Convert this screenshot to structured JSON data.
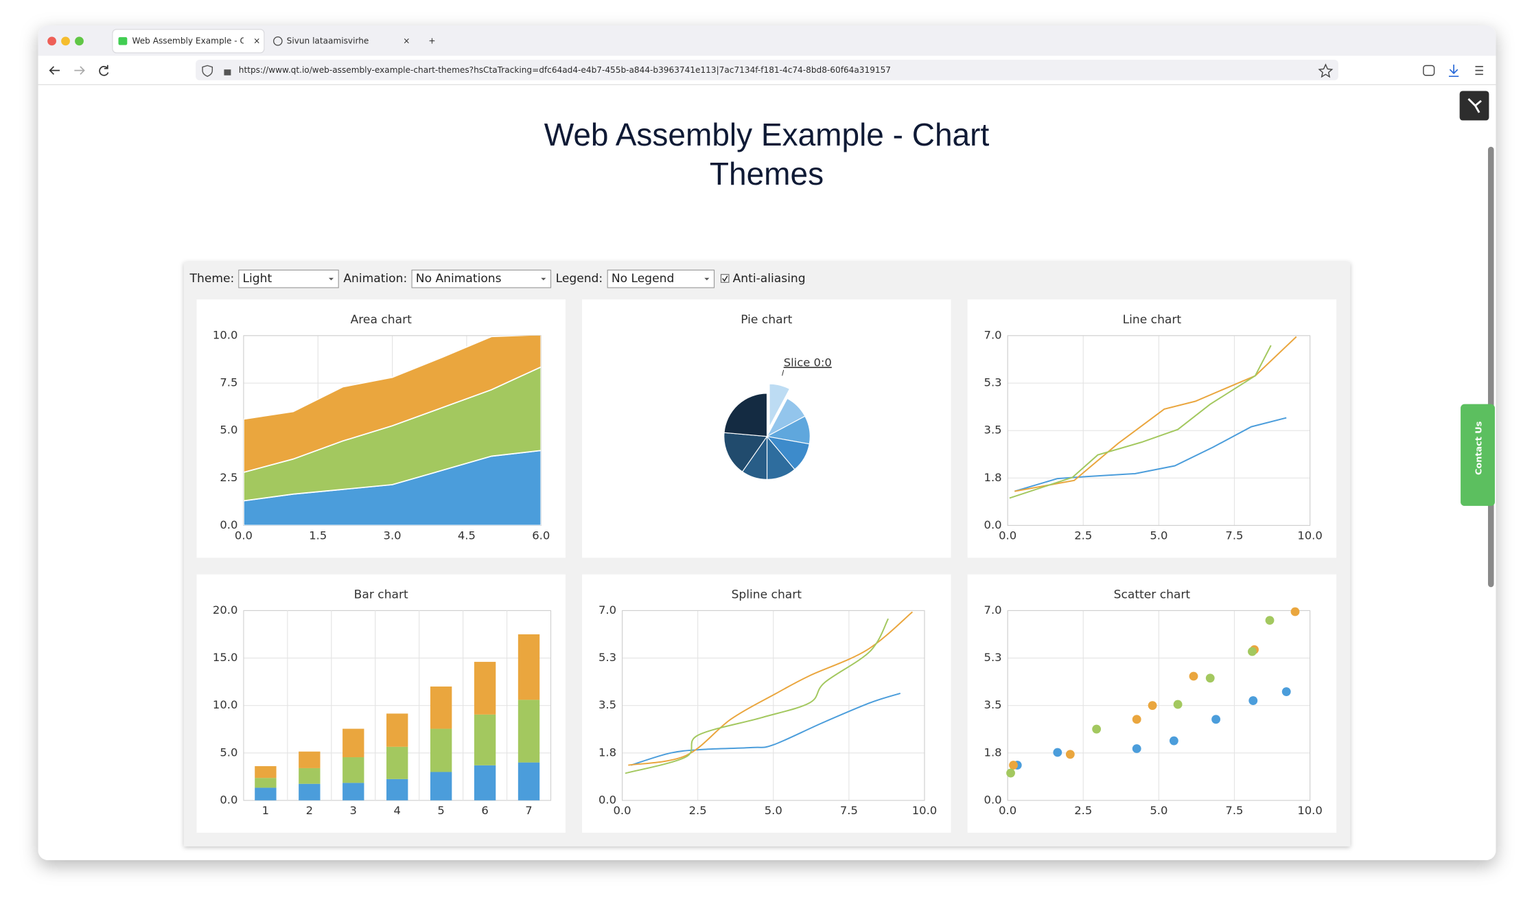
{
  "browser": {
    "tabs": [
      {
        "title": "Web Assembly Example - Chart"
      },
      {
        "title": "Sivun lataamisvirhe"
      }
    ],
    "url": "https://www.qt.io/web-assembly-example-chart-themes?hsCtaTracking=dfc64ad4-e4b7-455b-a844-b3963741e113|7ac7134f-f181-4c74-8bd8-60f64a319157"
  },
  "page": {
    "title": "Web Assembly Example - Chart Themes",
    "contact": "Contact Us"
  },
  "controls": {
    "theme_label": "Theme:",
    "theme": "Light",
    "animation_label": "Animation:",
    "animation": "No Animations",
    "legend_label": "Legend:",
    "legend": "No Legend",
    "antialiasing": "Anti-aliasing"
  },
  "chart_data": [
    {
      "type": "area",
      "title": "Area chart",
      "x": [
        0,
        1,
        2,
        3,
        4,
        5,
        6
      ],
      "series": [
        {
          "color": "#4b9ddb",
          "values": [
            1.3,
            1.65,
            1.9,
            2.15,
            2.9,
            3.65,
            3.95
          ]
        },
        {
          "color": "#a3c85f",
          "values": [
            1.5,
            1.85,
            2.55,
            3.1,
            3.3,
            3.5,
            4.4
          ]
        },
        {
          "color": "#eaa63e",
          "values": [
            2.8,
            2.5,
            2.85,
            2.55,
            2.65,
            2.8,
            1.7
          ]
        }
      ],
      "xlim": [
        0,
        6
      ],
      "xticks": [
        {
          "value": 0,
          "label": "0.0"
        },
        1.5,
        {
          "value": 3,
          "label": "3.0"
        },
        4.5,
        {
          "value": 6,
          "label": "6.0"
        }
      ],
      "ylim": [
        0,
        10
      ],
      "yticks": [
        {
          "value": 0,
          "label": "0.0"
        },
        2.5,
        {
          "value": 5,
          "label": "5.0"
        },
        7.5,
        {
          "value": 10,
          "label": "10.0"
        }
      ],
      "grid": true
    },
    {
      "type": "pie",
      "title": "Pie chart",
      "categories": [
        "Slice 0:0",
        null,
        null,
        null,
        null,
        null,
        null,
        null
      ],
      "values": [
        7.8,
        9.4,
        10.6,
        11.1,
        11.1,
        9.7,
        16.7,
        23.6
      ],
      "colors": [
        "#bddcf3",
        "#93c5ec",
        "#5fa7dd",
        "#3d8bcb",
        "#2e6d9e",
        "#285d87",
        "#214b6d",
        "#142b42"
      ]
    },
    {
      "type": "line",
      "title": "Line chart",
      "series": [
        {
          "color": "#4b9ddb",
          "x": [
            0.23,
            1.65,
            2.59,
            4.21,
            5.53,
            6.8,
            8.06,
            9.22
          ],
          "values": [
            1.26,
            1.73,
            1.8,
            1.91,
            2.2,
            2.89,
            3.64,
            3.97
          ]
        },
        {
          "color": "#eaa63e",
          "x": [
            0.23,
            2.2,
            3.66,
            5.18,
            6.21,
            8.19,
            9.55
          ],
          "values": [
            1.26,
            1.66,
            3.03,
            4.29,
            4.58,
            5.52,
            6.96
          ]
        },
        {
          "color": "#a3c85f",
          "x": [
            0.06,
            2.14,
            2.98,
            4.43,
            5.63,
            6.7,
            8.19,
            8.71
          ],
          "values": [
            1.01,
            1.77,
            2.6,
            3.07,
            3.54,
            4.47,
            5.52,
            6.64
          ]
        }
      ],
      "xlim": [
        0,
        10
      ],
      "xticks": [
        {
          "value": 0,
          "label": "0.0"
        },
        2.5,
        {
          "value": 5,
          "label": "5.0"
        },
        7.5,
        {
          "value": 10,
          "label": "10.0"
        }
      ],
      "ylim": [
        0,
        7
      ],
      "yticks": [
        {
          "value": 0,
          "label": "0.0"
        },
        {
          "value": 1.75,
          "label": "1.8"
        },
        3.5,
        {
          "value": 5.25,
          "label": "5.3"
        },
        {
          "value": 7,
          "label": "7.0"
        }
      ],
      "grid": true
    },
    {
      "type": "bar",
      "title": "Bar chart",
      "categories": [
        "1",
        "2",
        "3",
        "4",
        "5",
        "6",
        "7"
      ],
      "series": [
        {
          "color": "#4b9ddb",
          "values": [
            1.34,
            1.75,
            1.85,
            2.25,
            3.0,
            3.7,
            4.0
          ]
        },
        {
          "color": "#a3c85f",
          "values": [
            1.03,
            1.65,
            2.7,
            3.4,
            4.55,
            5.35,
            6.6
          ]
        },
        {
          "color": "#eaa63e",
          "values": [
            1.24,
            1.75,
            3.0,
            3.5,
            4.45,
            5.55,
            6.9
          ]
        }
      ],
      "ylim": [
        0,
        20
      ],
      "yticks": [
        {
          "value": 0,
          "label": "0.0"
        },
        {
          "value": 5,
          "label": "5.0"
        },
        {
          "value": 10,
          "label": "10.0"
        },
        {
          "value": 15,
          "label": "15.0"
        },
        {
          "value": 20,
          "label": "20.0"
        }
      ],
      "grid": true
    },
    {
      "type": "spline",
      "title": "Spline chart",
      "series": [
        {
          "color": "#4b9ddb",
          "x": [
            0.29,
            1.6,
            2.7,
            4.3,
            5.0,
            6.6,
            8.2,
            9.2
          ],
          "values": [
            1.3,
            1.75,
            1.88,
            1.95,
            2.05,
            2.85,
            3.6,
            3.95
          ]
        },
        {
          "color": "#eaa63e",
          "x": [
            0.2,
            2.1,
            3.6,
            5.1,
            6.2,
            8.1,
            9.6
          ],
          "values": [
            1.3,
            1.65,
            3.0,
            3.95,
            4.6,
            5.55,
            6.95
          ]
        },
        {
          "color": "#a3c85f",
          "x": [
            0.1,
            2.1,
            2.5,
            4.6,
            6.2,
            6.7,
            8.2,
            8.8
          ],
          "values": [
            1.0,
            1.6,
            2.4,
            3.05,
            3.6,
            4.35,
            5.5,
            6.7
          ]
        }
      ],
      "xlim": [
        0,
        10
      ],
      "xticks": [
        {
          "value": 0,
          "label": "0.0"
        },
        2.5,
        {
          "value": 5,
          "label": "5.0"
        },
        7.5,
        {
          "value": 10,
          "label": "10.0"
        }
      ],
      "ylim": [
        0,
        7
      ],
      "yticks": [
        {
          "value": 0,
          "label": "0.0"
        },
        {
          "value": 1.75,
          "label": "1.8"
        },
        3.5,
        {
          "value": 5.25,
          "label": "5.3"
        },
        {
          "value": 7,
          "label": "7.0"
        }
      ],
      "grid": true
    },
    {
      "type": "scatter",
      "title": "Scatter chart",
      "series": [
        {
          "color": "#4b9ddb",
          "x": [
            0.32,
            1.65,
            4.27,
            5.5,
            6.89,
            8.12,
            9.22
          ],
          "values": [
            1.3,
            1.77,
            1.91,
            2.2,
            2.99,
            3.68,
            4.01
          ]
        },
        {
          "color": "#eaa63e",
          "x": [
            0.19,
            2.07,
            4.27,
            4.79,
            6.15,
            8.16,
            9.51
          ],
          "values": [
            1.3,
            1.7,
            2.99,
            3.5,
            4.58,
            5.56,
            6.96
          ]
        },
        {
          "color": "#a3c85f",
          "x": [
            0.1,
            2.94,
            5.63,
            6.7,
            8.09,
            8.67
          ],
          "values": [
            1.01,
            2.63,
            3.54,
            4.51,
            5.49,
            6.64
          ]
        }
      ],
      "xlim": [
        0,
        10
      ],
      "xticks": [
        {
          "value": 0,
          "label": "0.0"
        },
        2.5,
        {
          "value": 5,
          "label": "5.0"
        },
        7.5,
        {
          "value": 10,
          "label": "10.0"
        }
      ],
      "ylim": [
        0,
        7
      ],
      "yticks": [
        {
          "value": 0,
          "label": "0.0"
        },
        {
          "value": 1.75,
          "label": "1.8"
        },
        3.5,
        {
          "value": 5.25,
          "label": "5.3"
        },
        {
          "value": 7,
          "label": "7.0"
        }
      ],
      "grid": true
    }
  ]
}
